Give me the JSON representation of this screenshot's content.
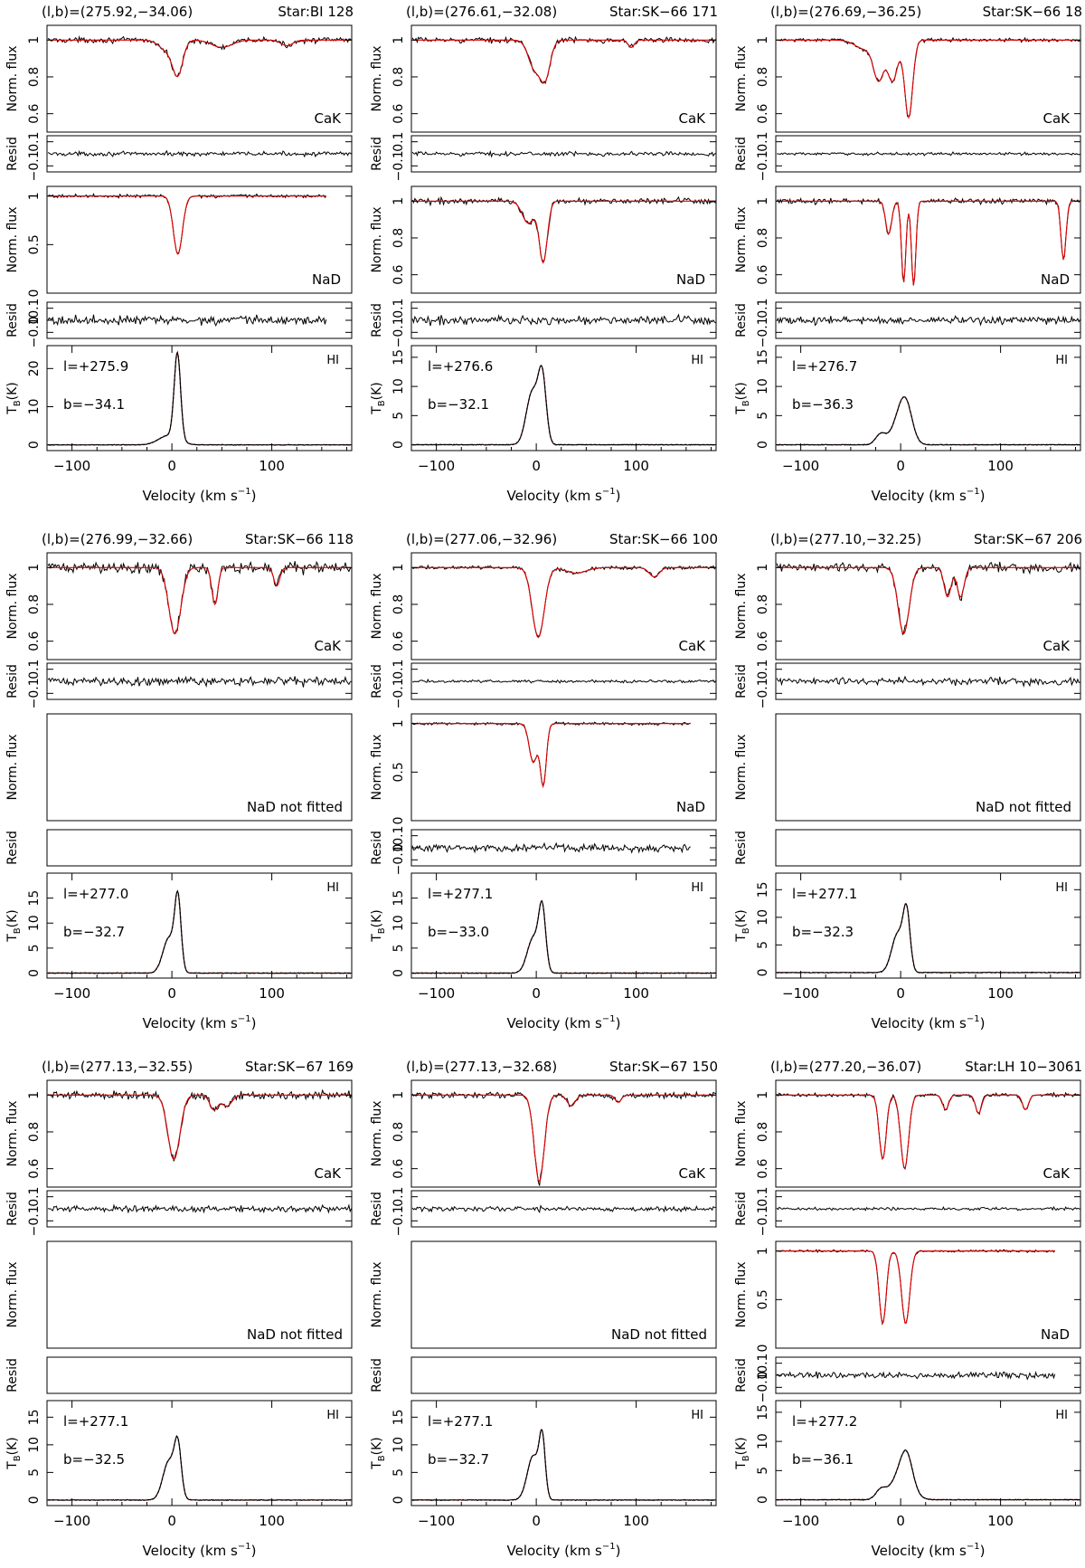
{
  "figure": {
    "velocity_label": "Velocity (km s",
    "velocity_exp": "−1",
    "cak_label": "CaK",
    "nad_label": "NaD",
    "nad_not_fitted_label": "NaD not fitted",
    "hi_label": "HI",
    "flux_ylabel": "Norm. flux",
    "resid_ylabel": "Resid",
    "tb_ylabel_main": "T",
    "tb_ylabel_sub": "B",
    "tb_ylabel_unit": "(K)",
    "colors": {
      "data": "#000000",
      "fit": "#e00000",
      "frame": "#000000"
    }
  },
  "chart_data": [
    {
      "type": "line",
      "header_coords": "(l,b)=(275.92,−34.06)",
      "header_star": "Star:BI 128",
      "l_text": "l=+275.9",
      "b_text": "b=−34.1",
      "cak": {
        "yticks": [
          "1",
          "0.8",
          "0.6"
        ],
        "ylim": [
          0.5,
          1.08
        ],
        "vmax": 180,
        "noise": 0.012,
        "components": [
          [
            -4,
            0.06,
            8
          ],
          [
            6,
            0.17,
            5
          ],
          [
            50,
            0.04,
            10
          ],
          [
            115,
            0.03,
            6
          ]
        ]
      },
      "cak_resid": {
        "yticks": [
          "0.1",
          "−0.1"
        ],
        "ylim": [
          -0.15,
          0.15
        ]
      },
      "nad": {
        "fitted": true,
        "yticks": [
          "1",
          "0.5",
          "0"
        ],
        "ylim": [
          0,
          1.1
        ],
        "vmax": 155,
        "noise": 0.015,
        "components": [
          [
            6,
            0.6,
            4.5
          ]
        ]
      },
      "nad_resid": {
        "yticks": [
          "0.1",
          "0",
          "−0.1"
        ],
        "ylim": [
          -0.15,
          0.15
        ]
      },
      "hi": {
        "yticks": [
          "20",
          "10",
          "0"
        ],
        "ylim": [
          -1.5,
          26
        ],
        "vmax": 180,
        "components": [
          [
            -3,
            2.5,
            10
          ],
          [
            5.5,
            22.5,
            3.2
          ]
        ]
      },
      "xticks": [
        -100,
        0,
        100
      ],
      "xlim": [
        -125,
        180
      ]
    },
    {
      "type": "line",
      "header_coords": "(l,b)=(276.61,−32.08)",
      "header_star": "Star:SK−66 171",
      "l_text": "l=+276.6",
      "b_text": "b=−32.1",
      "cak": {
        "yticks": [
          "1",
          "0.8",
          "0.6"
        ],
        "ylim": [
          0.5,
          1.08
        ],
        "vmax": 180,
        "noise": 0.012,
        "components": [
          [
            -2,
            0.15,
            6
          ],
          [
            9,
            0.2,
            5
          ],
          [
            95,
            0.04,
            3
          ]
        ]
      },
      "cak_resid": {
        "yticks": [
          "0.1",
          "−0.1"
        ],
        "ylim": [
          -0.15,
          0.15
        ]
      },
      "nad": {
        "fitted": true,
        "yticks": [
          "1",
          "0.8",
          "0.6"
        ],
        "ylim": [
          0.5,
          1.08
        ],
        "vmax": 180,
        "noise": 0.014,
        "components": [
          [
            -8,
            0.12,
            6
          ],
          [
            7,
            0.33,
            4
          ]
        ]
      },
      "nad_resid": {
        "yticks": [
          "0.1",
          "−0.1"
        ],
        "ylim": [
          -0.15,
          0.15
        ]
      },
      "hi": {
        "yticks": [
          "15",
          "10",
          "5",
          "0"
        ],
        "ylim": [
          -1,
          17
        ],
        "vmax": 180,
        "components": [
          [
            -4,
            9,
            6
          ],
          [
            6,
            11,
            4
          ]
        ]
      },
      "xticks": [
        -100,
        0,
        100
      ],
      "xlim": [
        -125,
        180
      ]
    },
    {
      "type": "line",
      "header_coords": "(l,b)=(276.69,−36.25)",
      "header_star": "Star:SK−66 18",
      "l_text": "l=+276.7",
      "b_text": "b=−36.3",
      "cak": {
        "yticks": [
          "1",
          "0.8",
          "0.6"
        ],
        "ylim": [
          0.5,
          1.08
        ],
        "vmax": 180,
        "noise": 0.008,
        "components": [
          [
            -35,
            0.05,
            10
          ],
          [
            -22,
            0.2,
            5
          ],
          [
            -8,
            0.22,
            5
          ],
          [
            8,
            0.42,
            4
          ]
        ]
      },
      "cak_resid": {
        "yticks": [
          "0.1",
          "−0.1"
        ],
        "ylim": [
          -0.15,
          0.15
        ]
      },
      "nad": {
        "fitted": true,
        "yticks": [
          "1",
          "0.8",
          "0.6"
        ],
        "ylim": [
          0.5,
          1.08
        ],
        "vmax": 180,
        "noise": 0.012,
        "components": [
          [
            -12,
            0.18,
            3
          ],
          [
            3,
            0.44,
            2.2
          ],
          [
            13,
            0.46,
            2.2
          ],
          [
            163,
            0.32,
            2.5
          ]
        ]
      },
      "nad_resid": {
        "yticks": [
          "0.1",
          "−0.1"
        ],
        "ylim": [
          -0.15,
          0.15
        ]
      },
      "hi": {
        "yticks": [
          "15",
          "10",
          "5",
          "0"
        ],
        "ylim": [
          -1,
          17
        ],
        "vmax": 180,
        "components": [
          [
            -20,
            1.8,
            5
          ],
          [
            0,
            5,
            8
          ],
          [
            6,
            4,
            6
          ]
        ]
      },
      "xticks": [
        -100,
        0,
        100
      ],
      "xlim": [
        -125,
        180
      ]
    },
    {
      "type": "line",
      "header_coords": "(l,b)=(276.99,−32.66)",
      "header_star": "Star:SK−66 118",
      "l_text": "l=+277.0",
      "b_text": "b=−32.7",
      "cak": {
        "yticks": [
          "1",
          "0.8",
          "0.6"
        ],
        "ylim": [
          0.5,
          1.08
        ],
        "vmax": 180,
        "noise": 0.025,
        "components": [
          [
            3,
            0.36,
            6
          ],
          [
            43,
            0.2,
            3
          ],
          [
            105,
            0.1,
            3
          ]
        ]
      },
      "cak_resid": {
        "yticks": [
          "0.1",
          "−0.1"
        ],
        "ylim": [
          -0.15,
          0.15
        ]
      },
      "nad": {
        "fitted": false
      },
      "nad_resid": {
        "yticks": [],
        "ylim": [
          -0.15,
          0.15
        ]
      },
      "hi": {
        "yticks": [
          "15",
          "10",
          "5",
          "0"
        ],
        "ylim": [
          -1,
          20
        ],
        "vmax": 180,
        "components": [
          [
            -3,
            7,
            6
          ],
          [
            6,
            14,
            3.2
          ]
        ]
      },
      "xticks": [
        -100,
        0,
        100
      ],
      "xlim": [
        -125,
        180
      ]
    },
    {
      "type": "line",
      "header_coords": "(l,b)=(277.06,−32.96)",
      "header_star": "Star:SK−66 100",
      "l_text": "l=+277.1",
      "b_text": "b=−33.0",
      "cak": {
        "yticks": [
          "1",
          "0.8",
          "0.6"
        ],
        "ylim": [
          0.5,
          1.08
        ],
        "vmax": 180,
        "noise": 0.008,
        "components": [
          [
            2,
            0.38,
            6
          ],
          [
            40,
            0.03,
            10
          ],
          [
            118,
            0.05,
            5
          ]
        ]
      },
      "cak_resid": {
        "yticks": [
          "0.1",
          "−0.1"
        ],
        "ylim": [
          -0.15,
          0.15
        ]
      },
      "nad": {
        "fitted": true,
        "yticks": [
          "1",
          "0.5",
          "0"
        ],
        "ylim": [
          0,
          1.1
        ],
        "vmax": 155,
        "noise": 0.012,
        "components": [
          [
            -3,
            0.4,
            4
          ],
          [
            7,
            0.63,
            3
          ]
        ]
      },
      "nad_resid": {
        "yticks": [
          "0.1",
          "0",
          "−0.1"
        ],
        "ylim": [
          -0.15,
          0.15
        ]
      },
      "hi": {
        "yticks": [
          "15",
          "10",
          "5",
          "0"
        ],
        "ylim": [
          -1,
          20
        ],
        "vmax": 180,
        "components": [
          [
            -3,
            7,
            6
          ],
          [
            6,
            12,
            3.5
          ]
        ]
      },
      "xticks": [
        -100,
        0,
        100
      ],
      "xlim": [
        -125,
        180
      ]
    },
    {
      "type": "line",
      "header_coords": "(l,b)=(277.10,−32.25)",
      "header_star": "Star:SK−67 206",
      "l_text": "l=+277.1",
      "b_text": "b=−32.3",
      "cak": {
        "yticks": [
          "1",
          "0.8",
          "0.6"
        ],
        "ylim": [
          0.5,
          1.08
        ],
        "vmax": 180,
        "noise": 0.022,
        "components": [
          [
            3,
            0.36,
            5.5
          ],
          [
            47,
            0.16,
            3.5
          ],
          [
            60,
            0.16,
            3.5
          ]
        ]
      },
      "cak_resid": {
        "yticks": [
          "0.1",
          "−0.1"
        ],
        "ylim": [
          -0.15,
          0.15
        ]
      },
      "nad": {
        "fitted": false
      },
      "nad_resid": {
        "yticks": [],
        "ylim": [
          -0.15,
          0.15
        ]
      },
      "hi": {
        "yticks": [
          "15",
          "10",
          "5",
          "0"
        ],
        "ylim": [
          -1,
          18
        ],
        "vmax": 180,
        "components": [
          [
            -3,
            7,
            6
          ],
          [
            6,
            10,
            3.5
          ]
        ]
      },
      "xticks": [
        -100,
        0,
        100
      ],
      "xlim": [
        -125,
        180
      ]
    },
    {
      "type": "line",
      "header_coords": "(l,b)=(277.13,−32.55)",
      "header_star": "Star:SK−67 169",
      "l_text": "l=+277.1",
      "b_text": "b=−32.5",
      "cak": {
        "yticks": [
          "1",
          "0.8",
          "0.6"
        ],
        "ylim": [
          0.5,
          1.08
        ],
        "vmax": 180,
        "noise": 0.018,
        "components": [
          [
            2,
            0.35,
            6
          ],
          [
            42,
            0.08,
            4
          ],
          [
            55,
            0.06,
            5
          ]
        ]
      },
      "cak_resid": {
        "yticks": [
          "0.1",
          "−0.1"
        ],
        "ylim": [
          -0.15,
          0.15
        ]
      },
      "nad": {
        "fitted": false
      },
      "nad_resid": {
        "yticks": [],
        "ylim": [
          -0.15,
          0.15
        ]
      },
      "hi": {
        "yticks": [
          "15",
          "10",
          "5",
          "0"
        ],
        "ylim": [
          -1,
          18
        ],
        "vmax": 180,
        "components": [
          [
            -3,
            7,
            6
          ],
          [
            6,
            9,
            3.5
          ]
        ]
      },
      "xticks": [
        -100,
        0,
        100
      ],
      "xlim": [
        -125,
        180
      ]
    },
    {
      "type": "line",
      "header_coords": "(l,b)=(277.13,−32.68)",
      "header_star": "Star:SK−67 150",
      "l_text": "l=+277.1",
      "b_text": "b=−32.7",
      "cak": {
        "yticks": [
          "1",
          "0.8",
          "0.6"
        ],
        "ylim": [
          0.5,
          1.08
        ],
        "vmax": 180,
        "noise": 0.015,
        "components": [
          [
            3,
            0.47,
            5
          ],
          [
            35,
            0.06,
            4
          ],
          [
            82,
            0.04,
            3
          ]
        ]
      },
      "cak_resid": {
        "yticks": [
          "0.1",
          "−0.1"
        ],
        "ylim": [
          -0.15,
          0.15
        ]
      },
      "nad": {
        "fitted": false
      },
      "nad_resid": {
        "yticks": [],
        "ylim": [
          -0.15,
          0.15
        ]
      },
      "hi": {
        "yticks": [
          "15",
          "10",
          "5",
          "0"
        ],
        "ylim": [
          -1,
          18
        ],
        "vmax": 180,
        "components": [
          [
            -3,
            8,
            6
          ],
          [
            6,
            10,
            3
          ]
        ]
      },
      "xticks": [
        -100,
        0,
        100
      ],
      "xlim": [
        -125,
        180
      ]
    },
    {
      "type": "line",
      "header_coords": "(l,b)=(277.20,−36.07)",
      "header_star": "Star:LH 10−3061",
      "l_text": "l=+277.2",
      "b_text": "b=−36.1",
      "cak": {
        "yticks": [
          "1",
          "0.8",
          "0.6"
        ],
        "ylim": [
          0.5,
          1.08
        ],
        "vmax": 180,
        "noise": 0.008,
        "components": [
          [
            -18,
            0.35,
            3.5
          ],
          [
            4,
            0.4,
            4
          ],
          [
            45,
            0.08,
            3
          ],
          [
            78,
            0.1,
            3
          ],
          [
            125,
            0.08,
            3
          ]
        ]
      },
      "cak_resid": {
        "yticks": [
          "0.1",
          "−0.1"
        ],
        "ylim": [
          -0.15,
          0.15
        ]
      },
      "nad": {
        "fitted": true,
        "yticks": [
          "1",
          "0.5",
          "0"
        ],
        "ylim": [
          0,
          1.1
        ],
        "vmax": 155,
        "noise": 0.01,
        "components": [
          [
            -18,
            0.75,
            3.5
          ],
          [
            5,
            0.75,
            4
          ]
        ]
      },
      "nad_resid": {
        "yticks": [
          "0.1",
          "0",
          "−0.1"
        ],
        "ylim": [
          -0.15,
          0.15
        ]
      },
      "hi": {
        "yticks": [
          "15",
          "10",
          "5",
          "0"
        ],
        "ylim": [
          -1,
          17
        ],
        "vmax": 180,
        "components": [
          [
            -20,
            1.5,
            5
          ],
          [
            0,
            4,
            10
          ],
          [
            6,
            5,
            6
          ]
        ]
      },
      "xticks": [
        -100,
        0,
        100
      ],
      "xlim": [
        -125,
        180
      ]
    }
  ]
}
